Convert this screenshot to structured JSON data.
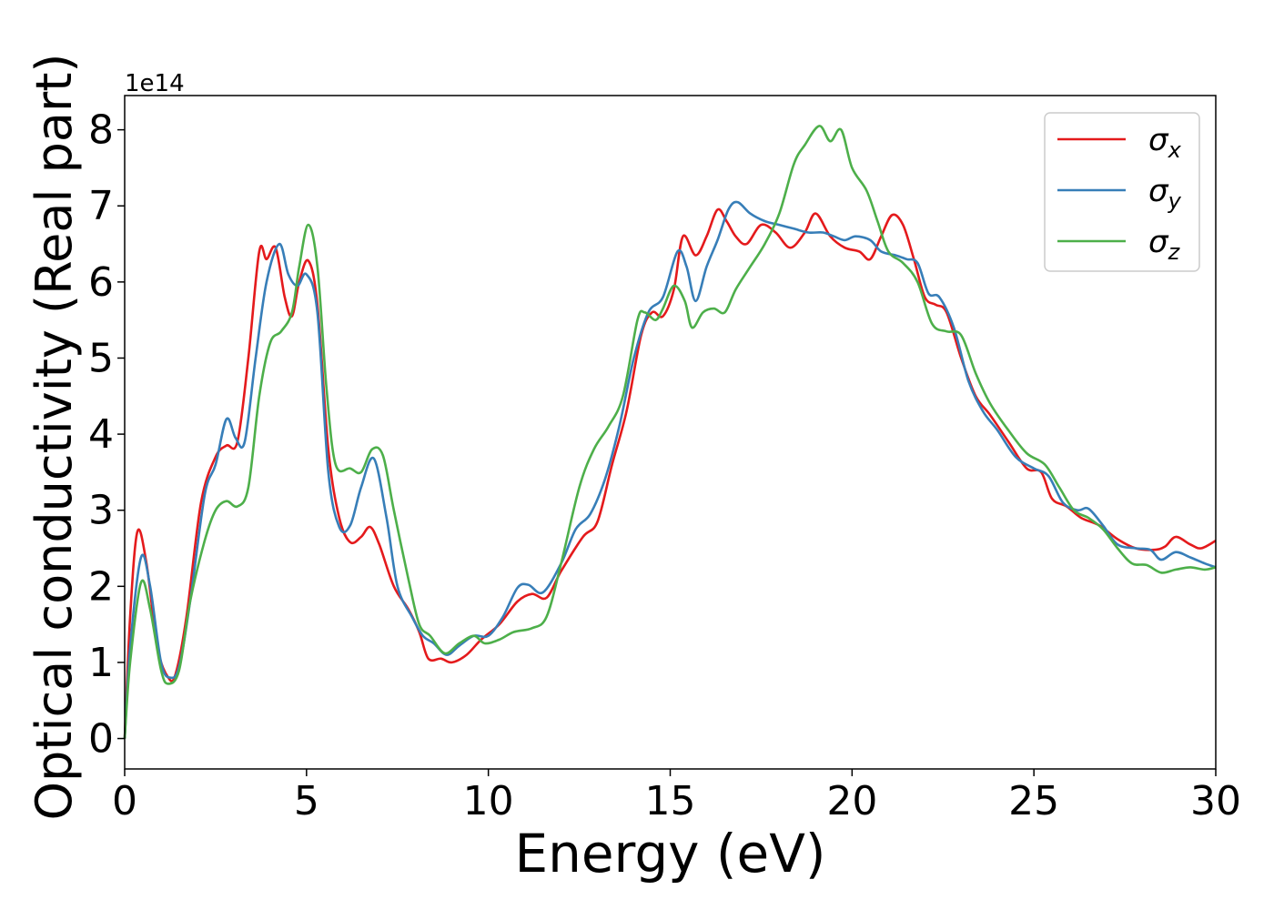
{
  "chart_data": {
    "type": "line",
    "xlabel": "Energy (eV)",
    "ylabel": "Optical conductivity (Real part)",
    "y_offset_label": "1e14",
    "xlim": [
      0,
      30
    ],
    "ylim": [
      -0.4,
      8.45
    ],
    "x_ticks": [
      0,
      5,
      10,
      15,
      20,
      25,
      30
    ],
    "y_ticks": [
      0,
      1,
      2,
      3,
      4,
      5,
      6,
      7,
      8
    ],
    "grid": false,
    "legend_position": "top-right",
    "series": [
      {
        "name": "σx",
        "symbol": "σ",
        "sub": "x",
        "color": "#e41a1c",
        "points": [
          [
            0,
            0
          ],
          [
            0.15,
            1.6
          ],
          [
            0.35,
            2.72
          ],
          [
            0.6,
            2.3
          ],
          [
            0.9,
            1.2
          ],
          [
            1.2,
            0.8
          ],
          [
            1.4,
            0.85
          ],
          [
            1.7,
            1.6
          ],
          [
            2.1,
            3.1
          ],
          [
            2.5,
            3.7
          ],
          [
            2.8,
            3.85
          ],
          [
            3.1,
            3.9
          ],
          [
            3.4,
            5.0
          ],
          [
            3.7,
            6.4
          ],
          [
            3.9,
            6.3
          ],
          [
            4.15,
            6.45
          ],
          [
            4.4,
            5.8
          ],
          [
            4.6,
            5.55
          ],
          [
            4.8,
            6.0
          ],
          [
            5.05,
            6.28
          ],
          [
            5.3,
            5.7
          ],
          [
            5.6,
            3.8
          ],
          [
            5.9,
            2.9
          ],
          [
            6.2,
            2.58
          ],
          [
            6.5,
            2.65
          ],
          [
            6.75,
            2.78
          ],
          [
            7.0,
            2.55
          ],
          [
            7.4,
            2.0
          ],
          [
            7.8,
            1.7
          ],
          [
            8.1,
            1.4
          ],
          [
            8.35,
            1.05
          ],
          [
            8.7,
            1.05
          ],
          [
            9.0,
            1.0
          ],
          [
            9.4,
            1.1
          ],
          [
            9.8,
            1.3
          ],
          [
            10.3,
            1.5
          ],
          [
            10.8,
            1.8
          ],
          [
            11.2,
            1.9
          ],
          [
            11.6,
            1.85
          ],
          [
            12.0,
            2.2
          ],
          [
            12.6,
            2.65
          ],
          [
            13.0,
            2.85
          ],
          [
            13.4,
            3.6
          ],
          [
            13.8,
            4.3
          ],
          [
            14.2,
            5.3
          ],
          [
            14.5,
            5.6
          ],
          [
            14.8,
            5.55
          ],
          [
            15.1,
            5.9
          ],
          [
            15.35,
            6.6
          ],
          [
            15.7,
            6.35
          ],
          [
            16.0,
            6.6
          ],
          [
            16.3,
            6.95
          ],
          [
            16.55,
            6.8
          ],
          [
            16.8,
            6.6
          ],
          [
            17.1,
            6.5
          ],
          [
            17.5,
            6.75
          ],
          [
            17.9,
            6.65
          ],
          [
            18.3,
            6.45
          ],
          [
            18.7,
            6.65
          ],
          [
            19.0,
            6.9
          ],
          [
            19.4,
            6.6
          ],
          [
            19.8,
            6.45
          ],
          [
            20.2,
            6.4
          ],
          [
            20.5,
            6.3
          ],
          [
            20.8,
            6.6
          ],
          [
            21.1,
            6.88
          ],
          [
            21.4,
            6.75
          ],
          [
            21.7,
            6.3
          ],
          [
            22.0,
            5.8
          ],
          [
            22.3,
            5.7
          ],
          [
            22.6,
            5.6
          ],
          [
            23.0,
            5.0
          ],
          [
            23.4,
            4.5
          ],
          [
            23.8,
            4.25
          ],
          [
            24.3,
            3.9
          ],
          [
            24.8,
            3.55
          ],
          [
            25.2,
            3.5
          ],
          [
            25.5,
            3.15
          ],
          [
            25.9,
            3.05
          ],
          [
            26.3,
            2.9
          ],
          [
            26.8,
            2.8
          ],
          [
            27.3,
            2.62
          ],
          [
            27.8,
            2.5
          ],
          [
            28.3,
            2.48
          ],
          [
            28.6,
            2.52
          ],
          [
            28.9,
            2.65
          ],
          [
            29.3,
            2.55
          ],
          [
            29.6,
            2.5
          ],
          [
            30.0,
            2.6
          ]
        ]
      },
      {
        "name": "σy",
        "symbol": "σ",
        "sub": "y",
        "color": "#377eb8",
        "points": [
          [
            0,
            0
          ],
          [
            0.15,
            1.2
          ],
          [
            0.45,
            2.38
          ],
          [
            0.7,
            2.0
          ],
          [
            1.0,
            1.0
          ],
          [
            1.25,
            0.8
          ],
          [
            1.5,
            0.95
          ],
          [
            1.8,
            1.8
          ],
          [
            2.2,
            3.2
          ],
          [
            2.5,
            3.6
          ],
          [
            2.8,
            4.2
          ],
          [
            3.05,
            3.95
          ],
          [
            3.3,
            3.9
          ],
          [
            3.6,
            5.0
          ],
          [
            3.9,
            6.0
          ],
          [
            4.25,
            6.5
          ],
          [
            4.5,
            6.1
          ],
          [
            4.75,
            5.95
          ],
          [
            5.0,
            6.1
          ],
          [
            5.3,
            5.6
          ],
          [
            5.6,
            3.5
          ],
          [
            5.9,
            2.78
          ],
          [
            6.2,
            2.8
          ],
          [
            6.5,
            3.3
          ],
          [
            6.85,
            3.68
          ],
          [
            7.2,
            2.9
          ],
          [
            7.5,
            2.0
          ],
          [
            7.9,
            1.6
          ],
          [
            8.2,
            1.35
          ],
          [
            8.5,
            1.25
          ],
          [
            8.85,
            1.1
          ],
          [
            9.2,
            1.22
          ],
          [
            9.6,
            1.35
          ],
          [
            10.0,
            1.35
          ],
          [
            10.4,
            1.6
          ],
          [
            10.8,
            1.98
          ],
          [
            11.1,
            2.02
          ],
          [
            11.5,
            1.92
          ],
          [
            12.0,
            2.3
          ],
          [
            12.4,
            2.75
          ],
          [
            12.8,
            2.95
          ],
          [
            13.2,
            3.4
          ],
          [
            13.6,
            4.1
          ],
          [
            14.0,
            5.0
          ],
          [
            14.4,
            5.6
          ],
          [
            14.8,
            5.8
          ],
          [
            15.2,
            6.4
          ],
          [
            15.45,
            6.2
          ],
          [
            15.7,
            5.75
          ],
          [
            16.0,
            6.2
          ],
          [
            16.3,
            6.55
          ],
          [
            16.6,
            6.95
          ],
          [
            16.85,
            7.05
          ],
          [
            17.2,
            6.9
          ],
          [
            17.6,
            6.8
          ],
          [
            18.0,
            6.75
          ],
          [
            18.4,
            6.7
          ],
          [
            18.8,
            6.65
          ],
          [
            19.2,
            6.65
          ],
          [
            19.5,
            6.6
          ],
          [
            19.8,
            6.55
          ],
          [
            20.1,
            6.6
          ],
          [
            20.5,
            6.55
          ],
          [
            20.8,
            6.4
          ],
          [
            21.2,
            6.35
          ],
          [
            21.5,
            6.3
          ],
          [
            21.8,
            6.25
          ],
          [
            22.1,
            5.85
          ],
          [
            22.4,
            5.8
          ],
          [
            22.8,
            5.4
          ],
          [
            23.2,
            4.7
          ],
          [
            23.6,
            4.3
          ],
          [
            24.0,
            4.05
          ],
          [
            24.5,
            3.7
          ],
          [
            25.0,
            3.55
          ],
          [
            25.4,
            3.45
          ],
          [
            25.8,
            3.1
          ],
          [
            26.2,
            3.0
          ],
          [
            26.5,
            3.02
          ],
          [
            26.9,
            2.8
          ],
          [
            27.3,
            2.55
          ],
          [
            27.8,
            2.5
          ],
          [
            28.2,
            2.48
          ],
          [
            28.5,
            2.35
          ],
          [
            28.9,
            2.45
          ],
          [
            29.3,
            2.38
          ],
          [
            29.7,
            2.3
          ],
          [
            30.0,
            2.25
          ]
        ]
      },
      {
        "name": "σz",
        "symbol": "σ",
        "sub": "z",
        "color": "#4daf4a",
        "points": [
          [
            0,
            0
          ],
          [
            0.15,
            1.0
          ],
          [
            0.45,
            2.05
          ],
          [
            0.7,
            1.7
          ],
          [
            1.0,
            0.9
          ],
          [
            1.2,
            0.72
          ],
          [
            1.5,
            0.9
          ],
          [
            1.8,
            1.8
          ],
          [
            2.2,
            2.6
          ],
          [
            2.5,
            3.0
          ],
          [
            2.8,
            3.12
          ],
          [
            3.1,
            3.05
          ],
          [
            3.4,
            3.3
          ],
          [
            3.7,
            4.5
          ],
          [
            4.0,
            5.2
          ],
          [
            4.3,
            5.35
          ],
          [
            4.6,
            5.6
          ],
          [
            4.8,
            6.2
          ],
          [
            5.05,
            6.75
          ],
          [
            5.3,
            6.2
          ],
          [
            5.55,
            4.6
          ],
          [
            5.8,
            3.6
          ],
          [
            6.2,
            3.55
          ],
          [
            6.5,
            3.5
          ],
          [
            6.8,
            3.8
          ],
          [
            7.1,
            3.72
          ],
          [
            7.4,
            3.0
          ],
          [
            7.8,
            2.1
          ],
          [
            8.1,
            1.5
          ],
          [
            8.4,
            1.35
          ],
          [
            8.8,
            1.12
          ],
          [
            9.2,
            1.25
          ],
          [
            9.6,
            1.35
          ],
          [
            9.9,
            1.25
          ],
          [
            10.3,
            1.3
          ],
          [
            10.7,
            1.4
          ],
          [
            11.2,
            1.45
          ],
          [
            11.6,
            1.6
          ],
          [
            12.0,
            2.3
          ],
          [
            12.5,
            3.3
          ],
          [
            12.9,
            3.8
          ],
          [
            13.3,
            4.1
          ],
          [
            13.7,
            4.5
          ],
          [
            14.1,
            5.5
          ],
          [
            14.3,
            5.6
          ],
          [
            14.6,
            5.5
          ],
          [
            14.8,
            5.65
          ],
          [
            15.1,
            5.95
          ],
          [
            15.4,
            5.75
          ],
          [
            15.6,
            5.4
          ],
          [
            15.9,
            5.6
          ],
          [
            16.2,
            5.65
          ],
          [
            16.5,
            5.6
          ],
          [
            16.8,
            5.9
          ],
          [
            17.2,
            6.2
          ],
          [
            17.6,
            6.5
          ],
          [
            18.0,
            6.9
          ],
          [
            18.4,
            7.55
          ],
          [
            18.7,
            7.8
          ],
          [
            19.1,
            8.05
          ],
          [
            19.4,
            7.85
          ],
          [
            19.7,
            8.0
          ],
          [
            20.0,
            7.5
          ],
          [
            20.4,
            7.2
          ],
          [
            20.7,
            6.8
          ],
          [
            21.0,
            6.4
          ],
          [
            21.4,
            6.25
          ],
          [
            21.8,
            6.0
          ],
          [
            22.2,
            5.45
          ],
          [
            22.6,
            5.35
          ],
          [
            23.0,
            5.3
          ],
          [
            23.4,
            4.8
          ],
          [
            23.8,
            4.4
          ],
          [
            24.3,
            4.05
          ],
          [
            24.8,
            3.75
          ],
          [
            25.3,
            3.6
          ],
          [
            25.7,
            3.3
          ],
          [
            26.1,
            3.0
          ],
          [
            26.5,
            2.9
          ],
          [
            26.9,
            2.75
          ],
          [
            27.3,
            2.5
          ],
          [
            27.7,
            2.3
          ],
          [
            28.1,
            2.28
          ],
          [
            28.5,
            2.18
          ],
          [
            28.9,
            2.22
          ],
          [
            29.3,
            2.25
          ],
          [
            29.7,
            2.22
          ],
          [
            30.0,
            2.25
          ]
        ]
      }
    ]
  }
}
